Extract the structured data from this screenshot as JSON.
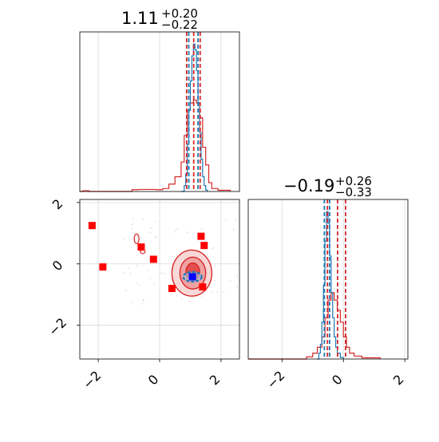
{
  "chart_data": [
    {
      "type": "histogram",
      "panel": "top-left",
      "title_main": "1.11",
      "title_sup": "+0.20",
      "title_sub": "−0.22",
      "xlim": [
        -2.6,
        2.6
      ],
      "grid": true,
      "series": [
        {
          "color": "#d62728",
          "bins": [
            [
              -2.6,
              0.0
            ],
            [
              -2.5,
              0.005
            ],
            [
              -2.3,
              0.0
            ],
            [
              -1.0,
              0.0
            ],
            [
              -0.9,
              0.012
            ],
            [
              -0.7,
              0.014
            ],
            [
              -0.1,
              0.012
            ],
            [
              0.1,
              0.02
            ],
            [
              0.3,
              0.05
            ],
            [
              0.5,
              0.1
            ],
            [
              0.7,
              0.2
            ],
            [
              0.8,
              0.38
            ],
            [
              0.9,
              0.55
            ],
            [
              1.0,
              0.6
            ],
            [
              1.1,
              0.62
            ],
            [
              1.2,
              0.6
            ],
            [
              1.3,
              0.5
            ],
            [
              1.4,
              0.3
            ],
            [
              1.5,
              0.18
            ],
            [
              1.6,
              0.06
            ],
            [
              1.7,
              0.02
            ],
            [
              1.9,
              0.008
            ],
            [
              2.3,
              0.0
            ]
          ]
        },
        {
          "color": "#1f77b4",
          "bins": [
            [
              0.7,
              0.0
            ],
            [
              0.8,
              0.04
            ],
            [
              0.85,
              0.12
            ],
            [
              0.9,
              0.32
            ],
            [
              0.95,
              0.55
            ],
            [
              1.0,
              0.75
            ],
            [
              1.05,
              0.92
            ],
            [
              1.1,
              1.0
            ],
            [
              1.15,
              0.96
            ],
            [
              1.2,
              0.82
            ],
            [
              1.25,
              0.6
            ],
            [
              1.3,
              0.4
            ],
            [
              1.35,
              0.22
            ],
            [
              1.4,
              0.1
            ],
            [
              1.45,
              0.04
            ],
            [
              1.5,
              0.01
            ],
            [
              1.55,
              0.0
            ]
          ]
        }
      ],
      "vlines": [
        {
          "x": 0.88,
          "color": "#d62728"
        },
        {
          "x": 1.32,
          "color": "#d62728"
        },
        {
          "x": 0.95,
          "color": "#1f77b4"
        },
        {
          "x": 1.25,
          "color": "#1f77b4"
        },
        {
          "x": 1.11,
          "color": "#d62728"
        }
      ]
    },
    {
      "type": "scatter",
      "panel": "bottom-left",
      "xlim": [
        -2.6,
        2.6
      ],
      "ylim": [
        -3.1,
        2.1
      ],
      "x_ticks": [
        "−2",
        "0",
        "2"
      ],
      "y_ticks": [
        "2",
        "0",
        "−2"
      ],
      "grid": true,
      "red_squares": [
        [
          -2.2,
          1.25
        ],
        [
          -1.85,
          -0.1
        ],
        [
          -0.6,
          0.55
        ],
        [
          -0.2,
          0.15
        ],
        [
          0.4,
          -0.8
        ],
        [
          1.35,
          0.9
        ],
        [
          1.45,
          0.6
        ],
        [
          1.4,
          -0.75
        ]
      ],
      "blue_square": [
        1.07,
        -0.42
      ],
      "contours": [
        {
          "cx": 1.05,
          "cy": -0.3,
          "rx": 0.65,
          "ry": 0.75,
          "fill": "#f6c8c8",
          "opacity": 0.7
        },
        {
          "cx": 1.08,
          "cy": -0.3,
          "rx": 0.42,
          "ry": 0.52,
          "fill": "#ee8b8b",
          "opacity": 0.7
        },
        {
          "cx": 1.08,
          "cy": -0.25,
          "rx": 0.22,
          "ry": 0.28,
          "fill": "#e03b3b",
          "opacity": 0.8
        }
      ],
      "blue_contour": {
        "cx": 1.07,
        "cy": -0.42,
        "rx": 0.3,
        "ry": 0.16
      }
    },
    {
      "type": "histogram",
      "panel": "bottom-right",
      "title_main": "−0.19",
      "title_sup": "+0.26",
      "title_sub": "−0.33",
      "xlim": [
        -3.1,
        2.1
      ],
      "x_ticks": [
        "−2",
        "0",
        "2"
      ],
      "grid": true,
      "series": [
        {
          "color": "#d62728",
          "bins": [
            [
              -3.1,
              0.0
            ],
            [
              -1.3,
              0.0
            ],
            [
              -1.2,
              0.015
            ],
            [
              -1.0,
              0.04
            ],
            [
              -0.85,
              0.08
            ],
            [
              -0.7,
              0.15
            ],
            [
              -0.6,
              0.28
            ],
            [
              -0.5,
              0.4
            ],
            [
              -0.4,
              0.45
            ],
            [
              -0.3,
              0.4
            ],
            [
              -0.2,
              0.33
            ],
            [
              -0.1,
              0.25
            ],
            [
              0.0,
              0.15
            ],
            [
              0.1,
              0.08
            ],
            [
              0.2,
              0.04
            ],
            [
              0.35,
              0.02
            ],
            [
              0.6,
              0.008
            ],
            [
              1.2,
              0.0
            ]
          ]
        },
        {
          "color": "#1f77b4",
          "bins": [
            [
              -0.85,
              0.0
            ],
            [
              -0.8,
              0.04
            ],
            [
              -0.75,
              0.1
            ],
            [
              -0.7,
              0.25
            ],
            [
              -0.65,
              0.5
            ],
            [
              -0.6,
              0.8
            ],
            [
              -0.55,
              1.0
            ],
            [
              -0.5,
              0.92
            ],
            [
              -0.45,
              0.7
            ],
            [
              -0.4,
              0.45
            ],
            [
              -0.35,
              0.28
            ],
            [
              -0.3,
              0.15
            ],
            [
              -0.25,
              0.08
            ],
            [
              -0.2,
              0.04
            ],
            [
              -0.1,
              0.01
            ],
            [
              0.0,
              0.0
            ]
          ]
        }
      ],
      "vlines": [
        {
          "x": -0.52,
          "color": "#d62728"
        },
        {
          "x": 0.07,
          "color": "#d62728"
        },
        {
          "x": -0.62,
          "color": "#1f77b4"
        },
        {
          "x": -0.45,
          "color": "#1f77b4"
        },
        {
          "x": -0.19,
          "color": "#d62728"
        }
      ]
    }
  ]
}
